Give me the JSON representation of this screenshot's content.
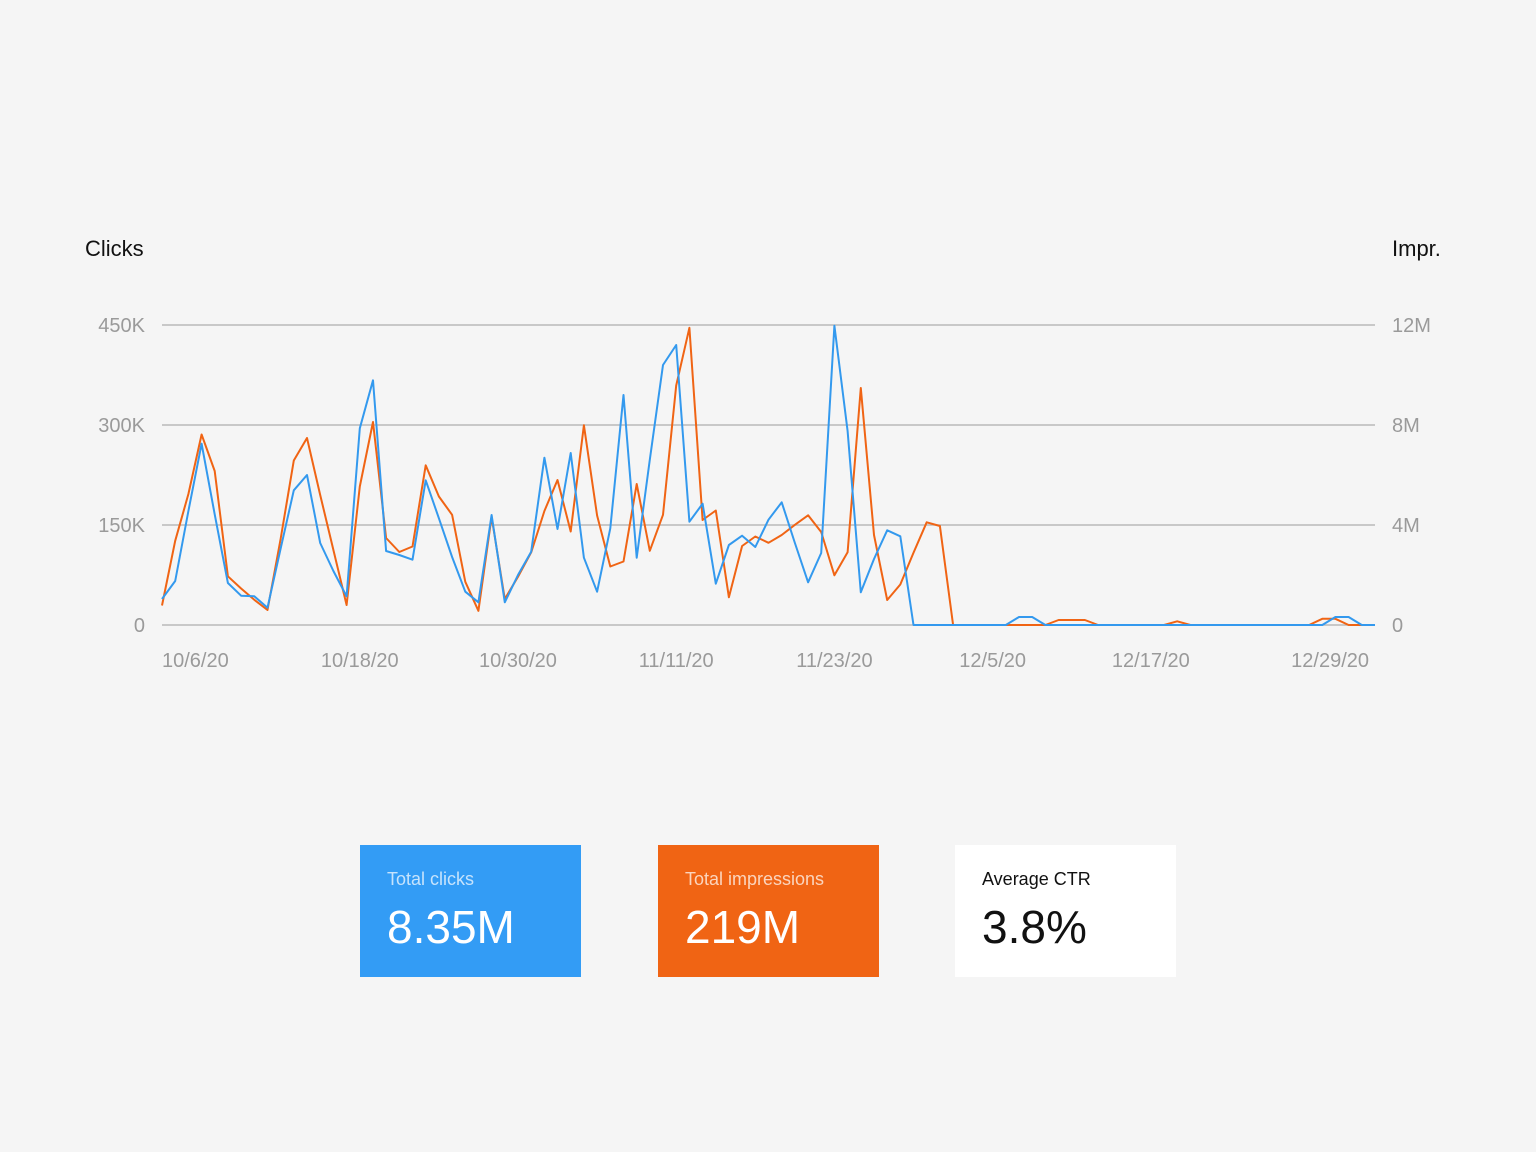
{
  "chart_data": {
    "type": "line",
    "y_left_label": "Clicks",
    "y_right_label": "Impr.",
    "y_left_ticks": [
      "0",
      "150K",
      "300K",
      "450K"
    ],
    "y_right_ticks": [
      "0",
      "4M",
      "8M",
      "12M"
    ],
    "y_left_range": [
      0,
      450000
    ],
    "y_right_range": [
      0,
      12000000
    ],
    "x_ticks": [
      "10/6/20",
      "10/18/20",
      "10/30/20",
      "11/11/20",
      "11/23/20",
      "12/5/20",
      "12/17/20",
      "12/29/20"
    ],
    "x_start": "10/3/20",
    "x_end": "1/3/21",
    "grid": true,
    "series": [
      {
        "key": "impressions",
        "axis": "right",
        "color": "#f06414",
        "values": [
          0.78,
          3.37,
          5.24,
          7.62,
          6.16,
          1.95,
          1.46,
          1.01,
          0.6,
          3.46,
          6.58,
          7.48,
          5.2,
          3.0,
          0.8,
          5.54,
          8.12,
          3.48,
          2.92,
          3.14,
          6.39,
          5.14,
          4.41,
          1.73,
          0.57,
          4.33,
          1.04,
          1.93,
          2.91,
          4.56,
          5.8,
          3.74,
          7.99,
          4.38,
          2.34,
          2.54,
          5.64,
          2.97,
          4.41,
          9.58,
          11.89,
          4.2,
          4.58,
          1.11,
          3.16,
          3.54,
          3.29,
          3.6,
          4.01,
          4.39,
          3.72,
          1.99,
          2.91,
          9.48,
          3.6,
          1.0,
          1.62,
          2.89,
          4.11,
          3.96,
          0,
          0,
          0,
          0,
          0,
          0,
          0,
          0,
          0.2,
          0.2,
          0.2,
          0,
          0,
          0,
          0,
          0,
          0,
          0.15,
          0,
          0,
          0,
          0,
          0,
          0,
          0,
          0,
          0,
          0,
          0.25,
          0.25,
          0,
          0,
          0
        ]
      },
      {
        "key": "clicks",
        "axis": "left",
        "color": "#3399ee",
        "values": [
          39000,
          66000,
          171000,
          272000,
          166000,
          63000,
          44000,
          43000,
          26000,
          115000,
          202000,
          225000,
          123000,
          81000,
          43000,
          295000,
          367000,
          111000,
          105000,
          98000,
          217000,
          160000,
          102000,
          50000,
          34000,
          165000,
          34000,
          75000,
          110000,
          251000,
          144000,
          258000,
          101000,
          50000,
          145000,
          345000,
          101000,
          248000,
          390000,
          420000,
          155000,
          182000,
          62000,
          120000,
          134000,
          117000,
          158000,
          184000,
          123000,
          64000,
          108000,
          449000,
          291000,
          49000,
          99000,
          142000,
          133000,
          0,
          0,
          0,
          0,
          0,
          0,
          0,
          0,
          12000,
          12000,
          0,
          0,
          0,
          0,
          0,
          0,
          0,
          0,
          0,
          0,
          0,
          0,
          0,
          0,
          0,
          0,
          0,
          0,
          0,
          0,
          0,
          0,
          12000,
          12000,
          0,
          0
        ]
      }
    ]
  },
  "cards": [
    {
      "label": "Total clicks",
      "value": "8.35M",
      "color": "#339cf5"
    },
    {
      "label": "Total impressions",
      "value": "219M",
      "color": "#f06414"
    },
    {
      "label": "Average CTR",
      "value": "3.8%",
      "color": "#ffffff"
    }
  ]
}
